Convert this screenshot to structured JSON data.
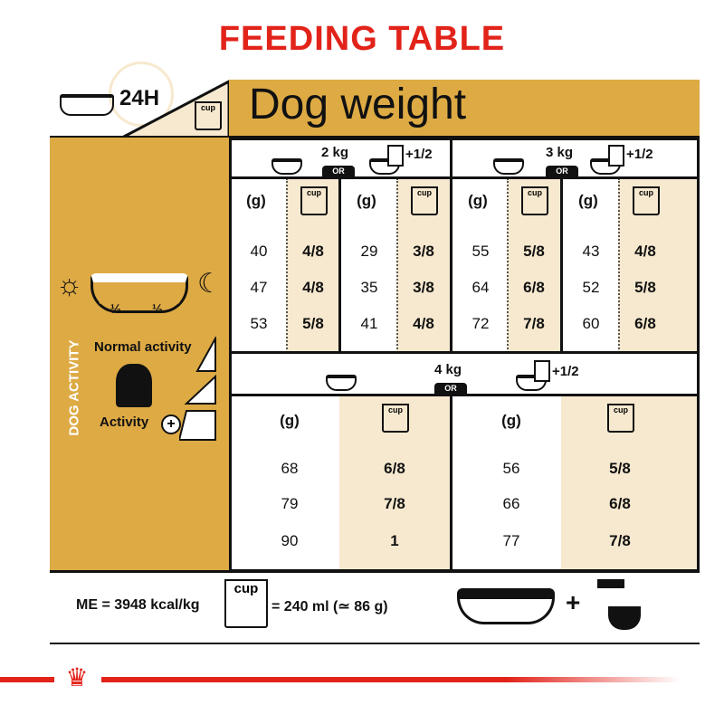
{
  "title": "FEEDING TABLE",
  "header": {
    "daily": "24H",
    "dog_weight": "Dog weight",
    "cup": "cup"
  },
  "left_panel": {
    "half_left": "½",
    "half_right": "½",
    "dog_activity": "DOG ACTIVITY",
    "normal_activity": "Normal activity",
    "activity": "Activity"
  },
  "colors": {
    "brand_red": "#E2231A",
    "gold": "#DDAA44",
    "cream": "#F7E9CF"
  },
  "table": {
    "g_label": "(g)",
    "cup_label": "cup",
    "or_label": "OR",
    "plus_half": "+1/2",
    "upper": [
      {
        "weight": "2 kg",
        "dry": {
          "g": [
            "40",
            "47",
            "53"
          ],
          "cup": [
            "4/8",
            "4/8",
            "5/8"
          ]
        },
        "mixed": {
          "g": [
            "29",
            "35",
            "41"
          ],
          "cup": [
            "3/8",
            "3/8",
            "4/8"
          ]
        }
      },
      {
        "weight": "3 kg",
        "dry": {
          "g": [
            "55",
            "64",
            "72"
          ],
          "cup": [
            "5/8",
            "6/8",
            "7/8"
          ]
        },
        "mixed": {
          "g": [
            "43",
            "52",
            "60"
          ],
          "cup": [
            "4/8",
            "5/8",
            "6/8"
          ]
        }
      }
    ],
    "lower": {
      "weight": "4 kg",
      "dry": {
        "g": [
          "68",
          "79",
          "90"
        ],
        "cup": [
          "6/8",
          "7/8",
          "1"
        ]
      },
      "mixed": {
        "g": [
          "56",
          "66",
          "77"
        ],
        "cup": [
          "5/8",
          "6/8",
          "7/8"
        ]
      }
    }
  },
  "footer": {
    "energy": "ME = 3948 kcal/kg",
    "cup": "cup",
    "cup_equiv": "= 240 ml (≃ 86 g)",
    "plus": "+"
  }
}
